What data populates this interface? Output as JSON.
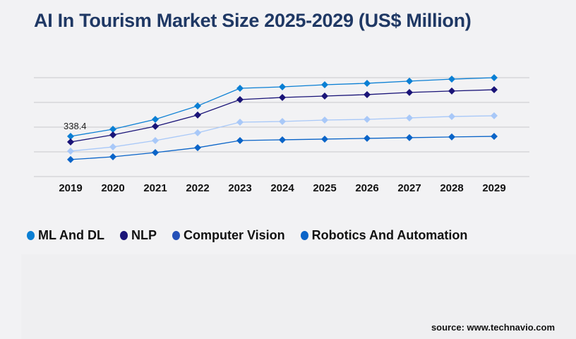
{
  "title": "AI In Tourism Market Size 2025-2029 (US$ Million)",
  "source": "source: www.technavio.com",
  "chart_data": {
    "type": "line",
    "title": "AI In Tourism Market Size 2025-2029 (US$ Million)",
    "categories": [
      "2019",
      "2020",
      "2021",
      "2022",
      "2023",
      "2024",
      "2025",
      "2026",
      "2027",
      "2028",
      "2029"
    ],
    "grid": true,
    "legend_position": "bottom",
    "data_labels": [
      {
        "series": "ML And DL",
        "category": "2019",
        "text": "338.4"
      }
    ],
    "series": [
      {
        "name": "ML And DL",
        "color": "#0a7fd4",
        "legend_color": "#0a7fd4",
        "values": [
          338.4,
          398,
          481,
          594,
          742,
          754,
          772,
          784,
          802,
          819,
          831
        ]
      },
      {
        "name": "NLP",
        "color": "#1a1478",
        "legend_color": "#1a1478",
        "values": [
          291,
          350,
          422,
          517,
          647,
          665,
          677,
          689,
          707,
          719,
          730
        ]
      },
      {
        "name": "Computer Vision",
        "color": "#a8c8f8",
        "legend_color": "#2450b8",
        "values": [
          214,
          249,
          303,
          368,
          457,
          463,
          475,
          481,
          493,
          505,
          511
        ]
      },
      {
        "name": "Robotics And Automation",
        "color": "#0a64c8",
        "legend_color": "#0a64c8",
        "values": [
          143,
          166,
          202,
          243,
          303,
          309,
          315,
          321,
          327,
          333,
          338
        ]
      }
    ]
  }
}
